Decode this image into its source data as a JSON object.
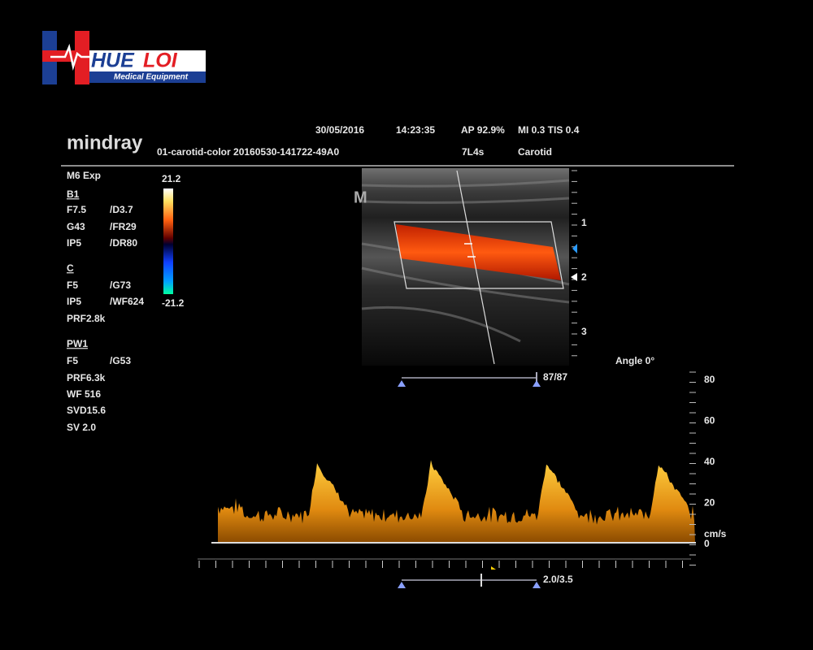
{
  "logo": {
    "brand_parts": [
      "HUE",
      "LOI"
    ],
    "tagline": "Medical Equipment"
  },
  "header": {
    "vendor": "mindray",
    "date": "30/05/2016",
    "time": "14:23:35",
    "ap": "AP 92.9%",
    "mi_tis": "MI 0.3 TIS 0.4",
    "file": "01-carotid-color 20160530-141722-49A0",
    "probe": "7L4s",
    "preset": "Carotid"
  },
  "params": [
    [
      "M6 Exp"
    ],
    [
      "B1"
    ],
    [
      "F7.5",
      "/D3.7"
    ],
    [
      "G43",
      "/FR29"
    ],
    [
      "IP5",
      "/DR80"
    ],
    [
      "C"
    ],
    [
      "F5",
      "/G73"
    ],
    [
      "IP5",
      "/WF624"
    ],
    [
      "PRF2.8k"
    ],
    [
      "PW1"
    ],
    [
      "F5",
      "/G53"
    ],
    [
      "PRF6.3k"
    ],
    [
      "WF 516"
    ],
    [
      "SVD15.6"
    ],
    [
      "SV 2.0"
    ]
  ],
  "color_scale": {
    "max": "21.2",
    "min": "-21.2"
  },
  "image_marker": "M",
  "depth_labels": [
    "1",
    "2",
    "3"
  ],
  "angle": "Angle 0°",
  "gate": "87/87",
  "velocity_scale": {
    "ticks": [
      "80",
      "60",
      "40",
      "20",
      "0"
    ],
    "unit": "cm/s"
  },
  "sweep": "2.0/3.5"
}
